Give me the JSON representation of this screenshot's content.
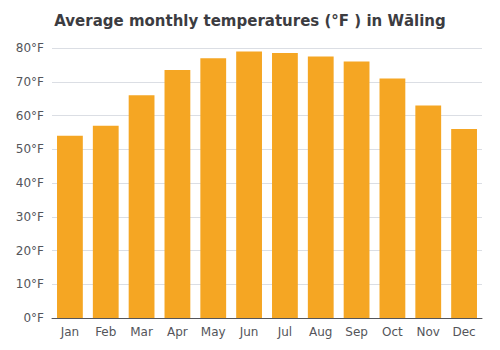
{
  "chart_data": {
    "type": "bar",
    "title": "Average monthly temperatures (°F ) in Wāling",
    "categories": [
      "Jan",
      "Feb",
      "Mar",
      "Apr",
      "May",
      "Jun",
      "Jul",
      "Aug",
      "Sep",
      "Oct",
      "Nov",
      "Dec"
    ],
    "values": [
      54,
      57,
      66,
      73.5,
      77,
      79,
      78.5,
      77.5,
      76,
      71,
      63,
      56
    ],
    "color": "#F5A623",
    "ylim": [
      0,
      80
    ],
    "yticks": [
      {
        "value": 0,
        "label": "0°F"
      },
      {
        "value": 10,
        "label": "10°F"
      },
      {
        "value": 20,
        "label": "20°F"
      },
      {
        "value": 30,
        "label": "30°F"
      },
      {
        "value": 40,
        "label": "40°F"
      },
      {
        "value": 50,
        "label": "50°F"
      },
      {
        "value": 60,
        "label": "60°F"
      },
      {
        "value": 70,
        "label": "70°F"
      },
      {
        "value": 80,
        "label": "80°F"
      }
    ],
    "grid": true
  }
}
